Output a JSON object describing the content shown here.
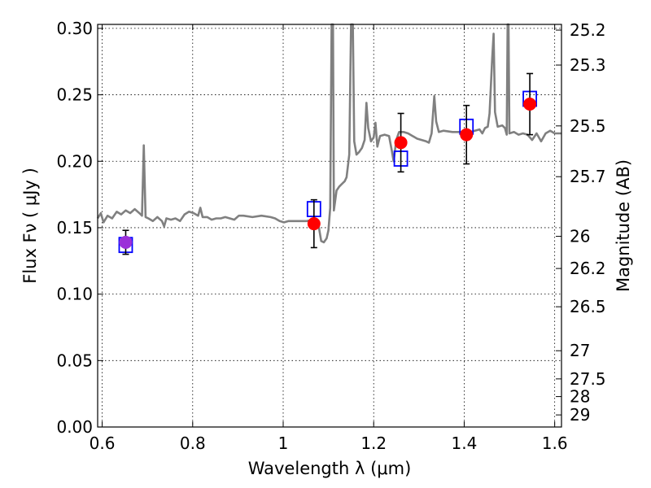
{
  "chart_data": {
    "type": "scatter",
    "xlabel": "Wavelength  λ (μm)",
    "ylabel": "Flux  Fν  ( μJy )",
    "ylabel_right": "Magnitude (AB)",
    "xlim": [
      0.59,
      1.615
    ],
    "ylim": [
      0.0,
      0.303
    ],
    "grid": true,
    "legend": "none",
    "x_ticks": [
      {
        "value": 0.6,
        "label": "0.6"
      },
      {
        "value": 0.8,
        "label": "0.8"
      },
      {
        "value": 1.0,
        "label": "1"
      },
      {
        "value": 1.2,
        "label": "1.2"
      },
      {
        "value": 1.4,
        "label": "1.4"
      },
      {
        "value": 1.6,
        "label": "1.6"
      }
    ],
    "y_ticks": [
      {
        "value": 0.0,
        "label": "0.00"
      },
      {
        "value": 0.05,
        "label": "0.05"
      },
      {
        "value": 0.1,
        "label": "0.10"
      },
      {
        "value": 0.15,
        "label": "0.15"
      },
      {
        "value": 0.2,
        "label": "0.20"
      },
      {
        "value": 0.25,
        "label": "0.25"
      },
      {
        "value": 0.3,
        "label": "0.30"
      }
    ],
    "right_ticks": [
      {
        "flux": 0.2987,
        "label": "25.2"
      },
      {
        "flux": 0.2724,
        "label": "25.3"
      },
      {
        "flux": 0.2266,
        "label": "25.5"
      },
      {
        "flux": 0.1884,
        "label": "25.7"
      },
      {
        "flux": 0.1435,
        "label": "26"
      },
      {
        "flux": 0.1193,
        "label": "26.2"
      },
      {
        "flux": 0.0905,
        "label": "26.5"
      },
      {
        "flux": 0.0574,
        "label": "27"
      },
      {
        "flux": 0.0362,
        "label": "27.5"
      },
      {
        "flux": 0.0229,
        "label": "28"
      },
      {
        "flux": 0.0091,
        "label": "29"
      }
    ],
    "series": [
      {
        "kind": "line",
        "color": "#808080",
        "points": [
          [
            0.59,
            0.157
          ],
          [
            0.597,
            0.161
          ],
          [
            0.603,
            0.154
          ],
          [
            0.612,
            0.159
          ],
          [
            0.622,
            0.157
          ],
          [
            0.632,
            0.162
          ],
          [
            0.642,
            0.16
          ],
          [
            0.652,
            0.163
          ],
          [
            0.662,
            0.161
          ],
          [
            0.672,
            0.164
          ],
          [
            0.682,
            0.161
          ],
          [
            0.688,
            0.159
          ],
          [
            0.692,
            0.212
          ],
          [
            0.696,
            0.158
          ],
          [
            0.702,
            0.157
          ],
          [
            0.712,
            0.155
          ],
          [
            0.722,
            0.158
          ],
          [
            0.732,
            0.155
          ],
          [
            0.737,
            0.151
          ],
          [
            0.742,
            0.157
          ],
          [
            0.752,
            0.156
          ],
          [
            0.762,
            0.157
          ],
          [
            0.772,
            0.155
          ],
          [
            0.782,
            0.16
          ],
          [
            0.792,
            0.162
          ],
          [
            0.802,
            0.161
          ],
          [
            0.812,
            0.159
          ],
          [
            0.817,
            0.165
          ],
          [
            0.822,
            0.158
          ],
          [
            0.832,
            0.158
          ],
          [
            0.842,
            0.156
          ],
          [
            0.852,
            0.157
          ],
          [
            0.862,
            0.157
          ],
          [
            0.872,
            0.158
          ],
          [
            0.882,
            0.157
          ],
          [
            0.892,
            0.156
          ],
          [
            0.902,
            0.159
          ],
          [
            0.912,
            0.159
          ],
          [
            0.932,
            0.158
          ],
          [
            0.952,
            0.159
          ],
          [
            0.972,
            0.158
          ],
          [
            0.982,
            0.157
          ],
          [
            0.992,
            0.155
          ],
          [
            1.002,
            0.154
          ],
          [
            1.012,
            0.155
          ],
          [
            1.032,
            0.155
          ],
          [
            1.052,
            0.155
          ],
          [
            1.066,
            0.156
          ],
          [
            1.072,
            0.153
          ],
          [
            1.078,
            0.152
          ],
          [
            1.084,
            0.14
          ],
          [
            1.09,
            0.139
          ],
          [
            1.096,
            0.142
          ],
          [
            1.1,
            0.148
          ],
          [
            1.104,
            0.165
          ],
          [
            1.107,
            0.303
          ],
          [
            1.11,
            0.303
          ],
          [
            1.112,
            0.163
          ],
          [
            1.118,
            0.178
          ],
          [
            1.124,
            0.181
          ],
          [
            1.13,
            0.183
          ],
          [
            1.136,
            0.185
          ],
          [
            1.14,
            0.188
          ],
          [
            1.146,
            0.205
          ],
          [
            1.15,
            0.303
          ],
          [
            1.154,
            0.303
          ],
          [
            1.157,
            0.215
          ],
          [
            1.162,
            0.205
          ],
          [
            1.168,
            0.207
          ],
          [
            1.174,
            0.21
          ],
          [
            1.18,
            0.216
          ],
          [
            1.184,
            0.244
          ],
          [
            1.188,
            0.225
          ],
          [
            1.194,
            0.215
          ],
          [
            1.2,
            0.218
          ],
          [
            1.204,
            0.229
          ],
          [
            1.208,
            0.211
          ],
          [
            1.214,
            0.219
          ],
          [
            1.224,
            0.22
          ],
          [
            1.234,
            0.219
          ],
          [
            1.24,
            0.208
          ],
          [
            1.244,
            0.2
          ],
          [
            1.25,
            0.216
          ],
          [
            1.256,
            0.222
          ],
          [
            1.266,
            0.222
          ],
          [
            1.276,
            0.221
          ],
          [
            1.286,
            0.219
          ],
          [
            1.296,
            0.217
          ],
          [
            1.306,
            0.216
          ],
          [
            1.316,
            0.215
          ],
          [
            1.322,
            0.214
          ],
          [
            1.328,
            0.221
          ],
          [
            1.334,
            0.249
          ],
          [
            1.338,
            0.23
          ],
          [
            1.344,
            0.222
          ],
          [
            1.354,
            0.223
          ],
          [
            1.374,
            0.222
          ],
          [
            1.394,
            0.222
          ],
          [
            1.414,
            0.222
          ],
          [
            1.434,
            0.224
          ],
          [
            1.44,
            0.221
          ],
          [
            1.446,
            0.225
          ],
          [
            1.452,
            0.226
          ],
          [
            1.456,
            0.236
          ],
          [
            1.462,
            0.278
          ],
          [
            1.465,
            0.296
          ],
          [
            1.468,
            0.237
          ],
          [
            1.474,
            0.226
          ],
          [
            1.484,
            0.227
          ],
          [
            1.49,
            0.225
          ],
          [
            1.494,
            0.22
          ],
          [
            1.496,
            0.303
          ],
          [
            1.498,
            0.303
          ],
          [
            1.5,
            0.221
          ],
          [
            1.51,
            0.222
          ],
          [
            1.52,
            0.22
          ],
          [
            1.53,
            0.221
          ],
          [
            1.54,
            0.22
          ],
          [
            1.55,
            0.216
          ],
          [
            1.56,
            0.221
          ],
          [
            1.57,
            0.215
          ],
          [
            1.58,
            0.221
          ],
          [
            1.59,
            0.223
          ],
          [
            1.6,
            0.221
          ],
          [
            1.615,
            0.221
          ]
        ]
      },
      {
        "kind": "errorbar-markers",
        "color": "#ff0000",
        "points": [
          {
            "x": 0.652,
            "y": 0.139,
            "err": 0.009,
            "color": "#9b30d9"
          },
          {
            "x": 1.068,
            "y": 0.153,
            "err": 0.018,
            "color": "#ff0000"
          },
          {
            "x": 1.26,
            "y": 0.214,
            "err": 0.022,
            "color": "#ff0000"
          },
          {
            "x": 1.405,
            "y": 0.22,
            "err": 0.022,
            "color": "#ff0000"
          },
          {
            "x": 1.545,
            "y": 0.243,
            "err": 0.023,
            "color": "#ff0000"
          }
        ]
      },
      {
        "kind": "open-squares",
        "color": "#0000ff",
        "points": [
          {
            "x": 0.652,
            "y": 0.137
          },
          {
            "x": 1.068,
            "y": 0.164
          },
          {
            "x": 1.26,
            "y": 0.202
          },
          {
            "x": 1.405,
            "y": 0.226
          },
          {
            "x": 1.545,
            "y": 0.247
          }
        ]
      }
    ]
  }
}
